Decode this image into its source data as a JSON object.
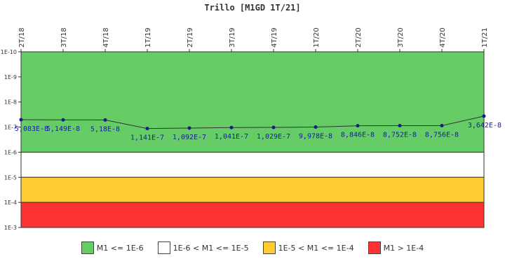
{
  "chart_data": {
    "type": "line",
    "title": "Trillo [M1GD 1T/21]",
    "x": [
      "2T/18",
      "3T/18",
      "4T/18",
      "1T/19",
      "2T/19",
      "3T/19",
      "4T/19",
      "1T/20",
      "2T/20",
      "3T/20",
      "4T/20",
      "1T/21"
    ],
    "values": [
      5.083e-08,
      5.149e-08,
      5.18e-08,
      1.141e-07,
      1.092e-07,
      1.041e-07,
      1.029e-07,
      9.978e-08,
      8.846e-08,
      8.752e-08,
      8.756e-08,
      3.642e-08
    ],
    "value_labels": [
      "5,083E-8",
      "5,149E-8",
      "5,18E-8",
      "1,141E-7",
      "1,092E-7",
      "1,041E-7",
      "1,029E-7",
      "9,978E-8",
      "8,846E-8",
      "8,752E-8",
      "8,756E-8",
      "3,642E-8"
    ],
    "y_scale": "log",
    "y_inverted": true,
    "ylim": [
      1e-10,
      0.001
    ],
    "y_ticks": [
      1e-10,
      1e-09,
      1e-08,
      1e-07,
      1e-06,
      1e-05,
      0.0001,
      0.001
    ],
    "y_tick_labels": [
      "1E-10",
      "1E-9",
      "1E-8",
      "1E-7",
      "1E-6",
      "1E-5",
      "1E-4",
      "1E-3"
    ],
    "x_axis_position": "top",
    "line_color": "#333333",
    "marker_color": "#1a1a8c",
    "bands": [
      {
        "from": 1e-10,
        "to": 1e-06,
        "color": "#66cc66",
        "label": "M1 <= 1E-6"
      },
      {
        "from": 1e-06,
        "to": 1e-05,
        "color": "#ffffff",
        "label": "1E-6 < M1 <= 1E-5"
      },
      {
        "from": 1e-05,
        "to": 0.0001,
        "color": "#ffcc33",
        "label": "1E-5 < M1 <= 1E-4"
      },
      {
        "from": 0.0001,
        "to": 0.001,
        "color": "#ff3333",
        "label": "M1 > 1E-4"
      }
    ],
    "legend_position": "bottom"
  }
}
